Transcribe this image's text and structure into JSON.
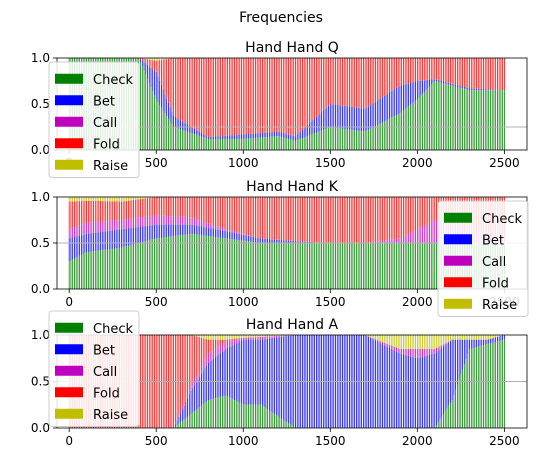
{
  "figure": {
    "suptitle": "Frequencies",
    "colors": {
      "Check": "#008000",
      "Bet": "#0000ff",
      "Call": "#bf00bf",
      "Fold": "#ff0000",
      "Raise": "#bfbf00",
      "reference_line": "#b0b0b0"
    }
  },
  "chart_data": [
    {
      "type": "bar",
      "stacked": true,
      "title": "Hand Hand Q",
      "xlim": [
        -70,
        2630
      ],
      "ylim": [
        0,
        1.0
      ],
      "xticks": [
        0,
        500,
        1000,
        1500,
        2000,
        2500
      ],
      "xtick_labels": [
        "0",
        "500",
        "1000",
        "1500",
        "2000",
        "2500"
      ],
      "yticks": [
        0.0,
        0.5,
        1.0
      ],
      "ytick_labels": [
        "0.0",
        "0.5",
        "1.0"
      ],
      "reference_line_y": 0.25,
      "legend": {
        "placement": "lower-left",
        "entries": [
          "Check",
          "Bet",
          "Call",
          "Fold",
          "Raise"
        ]
      },
      "x": [
        0,
        250,
        400,
        500,
        600,
        800,
        1000,
        1200,
        1300,
        1500,
        1700,
        1900,
        2000,
        2100,
        2300,
        2500
      ],
      "series": [
        {
          "name": "Check",
          "values": [
            1.0,
            1.0,
            1.0,
            0.55,
            0.25,
            0.12,
            0.12,
            0.15,
            0.1,
            0.25,
            0.2,
            0.4,
            0.55,
            0.75,
            0.65,
            0.65
          ]
        },
        {
          "name": "Bet",
          "values": [
            0.0,
            0.0,
            0.0,
            0.3,
            0.12,
            0.02,
            0.05,
            0.05,
            0.05,
            0.25,
            0.25,
            0.3,
            0.2,
            0.02,
            0.02,
            0.0
          ]
        },
        {
          "name": "Call",
          "values": [
            0.0,
            0.0,
            0.0,
            0.0,
            0.0,
            0.0,
            0.0,
            0.0,
            0.0,
            0.0,
            0.0,
            0.0,
            0.0,
            0.0,
            0.0,
            0.0
          ]
        },
        {
          "name": "Fold",
          "values": [
            0.0,
            0.0,
            0.0,
            0.12,
            0.63,
            0.86,
            0.83,
            0.8,
            0.85,
            0.5,
            0.55,
            0.3,
            0.25,
            0.23,
            0.33,
            0.35
          ]
        },
        {
          "name": "Raise",
          "values": [
            0.0,
            0.0,
            0.0,
            0.03,
            0.0,
            0.0,
            0.0,
            0.0,
            0.0,
            0.0,
            0.0,
            0.0,
            0.0,
            0.0,
            0.0,
            0.0
          ]
        }
      ]
    },
    {
      "type": "bar",
      "stacked": true,
      "title": "Hand Hand K",
      "xlim": [
        -70,
        2630
      ],
      "ylim": [
        0,
        1.0
      ],
      "xticks": [
        0,
        500,
        1000,
        1500,
        2000,
        2500
      ],
      "xtick_labels": [
        "0",
        "500",
        "1000",
        "1500",
        "2000",
        "2500"
      ],
      "yticks": [
        0.0,
        0.5,
        1.0
      ],
      "ytick_labels": [
        "0.0",
        "0.5",
        "1.0"
      ],
      "reference_line_y": 0.5,
      "legend": {
        "placement": "lower-right",
        "entries": [
          "Check",
          "Bet",
          "Call",
          "Fold",
          "Raise"
        ]
      },
      "x": [
        0,
        100,
        300,
        500,
        700,
        900,
        1100,
        1300,
        1500,
        1700,
        1900,
        2100,
        2300,
        2500
      ],
      "series": [
        {
          "name": "Check",
          "values": [
            0.3,
            0.4,
            0.45,
            0.55,
            0.6,
            0.55,
            0.5,
            0.5,
            0.5,
            0.5,
            0.5,
            0.5,
            0.5,
            0.5
          ]
        },
        {
          "name": "Bet",
          "values": [
            0.25,
            0.2,
            0.2,
            0.15,
            0.1,
            0.08,
            0.05,
            0.02,
            0.0,
            0.0,
            0.0,
            0.0,
            0.0,
            0.0
          ]
        },
        {
          "name": "Call",
          "values": [
            0.1,
            0.12,
            0.1,
            0.1,
            0.08,
            0.02,
            0.0,
            0.0,
            0.0,
            0.0,
            0.05,
            0.25,
            0.15,
            0.05
          ]
        },
        {
          "name": "Fold",
          "values": [
            0.3,
            0.24,
            0.2,
            0.2,
            0.22,
            0.35,
            0.45,
            0.48,
            0.5,
            0.5,
            0.45,
            0.25,
            0.35,
            0.45
          ]
        },
        {
          "name": "Raise",
          "values": [
            0.05,
            0.04,
            0.05,
            0.0,
            0.0,
            0.0,
            0.0,
            0.0,
            0.0,
            0.0,
            0.0,
            0.0,
            0.0,
            0.0
          ]
        }
      ]
    },
    {
      "type": "bar",
      "stacked": true,
      "title": "Hand Hand A",
      "xlim": [
        -70,
        2630
      ],
      "ylim": [
        0,
        1.0
      ],
      "xticks": [
        0,
        500,
        1000,
        1500,
        2000,
        2500
      ],
      "xtick_labels": [
        "0",
        "500",
        "1000",
        "1500",
        "2000",
        "2500"
      ],
      "yticks": [
        0.0,
        0.5,
        1.0
      ],
      "ytick_labels": [
        "0.0",
        "0.5",
        "1.0"
      ],
      "reference_line_y": 0.5,
      "legend": {
        "placement": "upper-left",
        "entries": [
          "Check",
          "Bet",
          "Call",
          "Fold",
          "Raise"
        ]
      },
      "x": [
        0,
        300,
        600,
        700,
        800,
        900,
        1000,
        1100,
        1300,
        1500,
        1700,
        1900,
        2000,
        2100,
        2200,
        2300,
        2400,
        2500
      ],
      "series": [
        {
          "name": "Check",
          "values": [
            0.0,
            0.0,
            0.0,
            0.15,
            0.3,
            0.35,
            0.25,
            0.25,
            0.0,
            0.0,
            0.0,
            0.0,
            0.0,
            0.0,
            0.3,
            0.85,
            0.9,
            0.95
          ]
        },
        {
          "name": "Bet",
          "values": [
            0.0,
            0.0,
            0.0,
            0.25,
            0.4,
            0.5,
            0.7,
            0.7,
            1.0,
            1.0,
            1.0,
            0.8,
            0.75,
            0.8,
            0.65,
            0.1,
            0.05,
            0.05
          ]
        },
        {
          "name": "Call",
          "values": [
            0.0,
            0.0,
            0.0,
            0.05,
            0.1,
            0.08,
            0.02,
            0.03,
            0.0,
            0.0,
            0.0,
            0.05,
            0.1,
            0.05,
            0.0,
            0.0,
            0.0,
            0.0
          ]
        },
        {
          "name": "Fold",
          "values": [
            1.0,
            1.0,
            1.0,
            0.55,
            0.15,
            0.02,
            0.0,
            0.0,
            0.0,
            0.0,
            0.0,
            0.0,
            0.0,
            0.0,
            0.0,
            0.0,
            0.0,
            0.0
          ]
        },
        {
          "name": "Raise",
          "values": [
            0.0,
            0.0,
            0.0,
            0.0,
            0.05,
            0.05,
            0.03,
            0.02,
            0.0,
            0.0,
            0.0,
            0.15,
            0.15,
            0.15,
            0.05,
            0.05,
            0.05,
            0.0
          ]
        }
      ]
    }
  ]
}
